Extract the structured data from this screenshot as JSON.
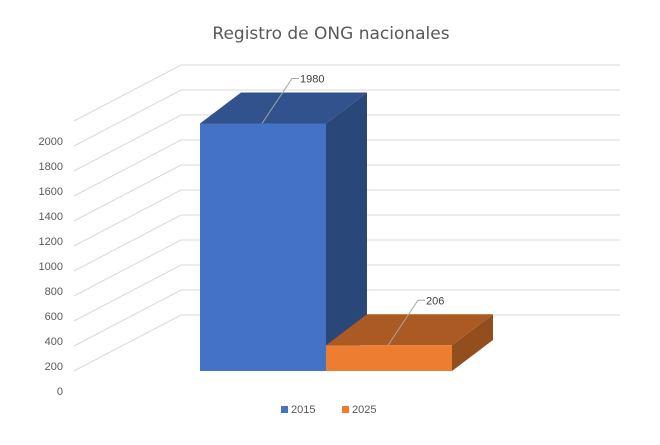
{
  "chart_data": {
    "type": "bar",
    "title": "Registro de ONG nacionales",
    "xlabel": "",
    "ylabel": "",
    "ylim": [
      0,
      2000
    ],
    "yticks": [
      0,
      200,
      400,
      600,
      800,
      1000,
      1200,
      1400,
      1600,
      1800,
      2000
    ],
    "grid": true,
    "legend_position": "bottom",
    "series": [
      {
        "name": "2015",
        "values": [
          1980
        ],
        "color": "#4472C4"
      },
      {
        "name": "2025",
        "values": [
          206
        ],
        "color": "#ED7D31"
      }
    ],
    "data_labels": [
      "1980",
      "206"
    ]
  }
}
